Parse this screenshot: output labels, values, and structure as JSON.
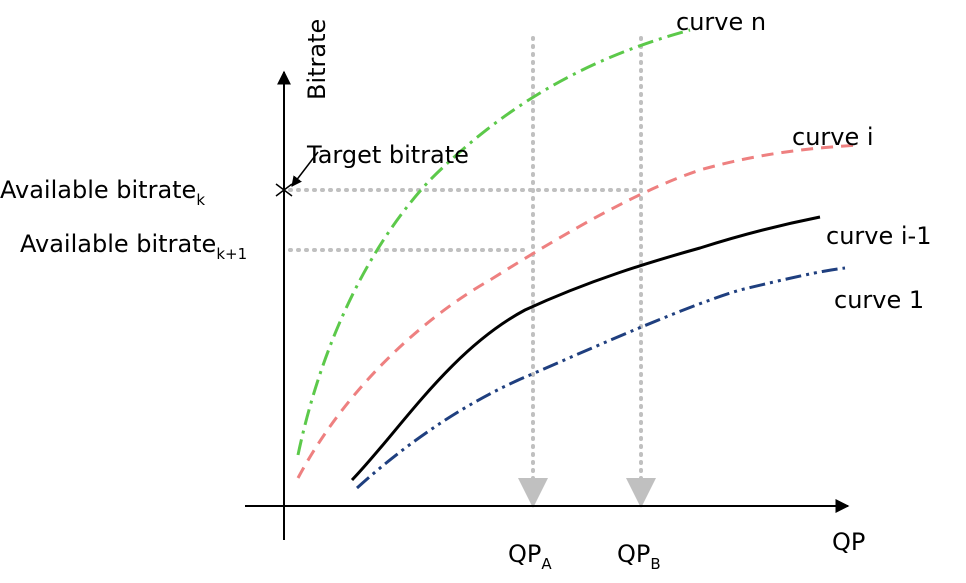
{
  "axes": {
    "y_label": "Bitrate",
    "x_label": "QP"
  },
  "annotations": {
    "target_bitrate": "Target bitrate",
    "available_k": {
      "text": "Available bitrate",
      "sub": "k"
    },
    "available_k1": {
      "text": "Available bitrate",
      "sub": "k+1"
    },
    "qp_a": {
      "text": "QP",
      "sub": "A"
    },
    "qp_b": {
      "text": "QP",
      "sub": "B"
    }
  },
  "curves": {
    "curve_n": {
      "label": "curve n",
      "color": "#5cc94a"
    },
    "curve_i": {
      "label": "curve i",
      "color": "#ee8080"
    },
    "curve_i1": {
      "label": "curve i-1",
      "color": "#000000"
    },
    "curve_1": {
      "label": "curve 1",
      "color": "#1f3f7f"
    }
  },
  "guide_color": "#c0c0c0"
}
